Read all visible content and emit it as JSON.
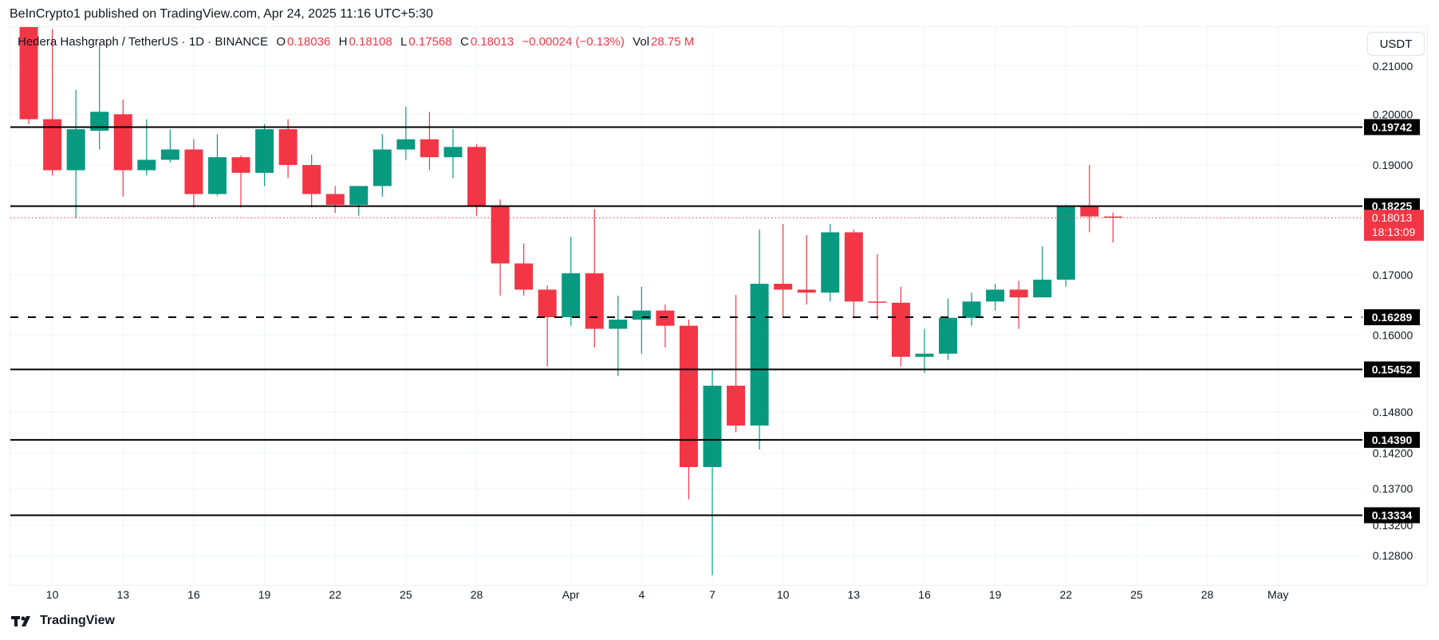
{
  "publisher": "BeInCrypto1 published on TradingView.com, Apr 24, 2025 11:16 UTC+5:30",
  "legend": {
    "symbol": "Hedera Hashgraph / TetherUS · 1D · BINANCE",
    "o_label": "O",
    "o": "0.18036",
    "h_label": "H",
    "h": "0.18108",
    "l_label": "L",
    "l": "0.17568",
    "c_label": "C",
    "c": "0.18013",
    "change": "−0.00024 (−0.13%)",
    "vol_label": "Vol",
    "vol": "28.75 M"
  },
  "currency_button": "USDT",
  "brand": "TradingView",
  "colors": {
    "up": "#089981",
    "down": "#F23645",
    "level": "#000000",
    "last_price": "#F23645"
  },
  "chart_data": {
    "type": "candlestick",
    "scale": "log",
    "grid": true,
    "ylim": [
      0.1235,
      0.2165
    ],
    "y_ticks": [
      "0.21000",
      "0.20000",
      "0.19000",
      "0.17000",
      "0.16000",
      "0.14800",
      "0.14200",
      "0.13700",
      "0.13200",
      "0.12800"
    ],
    "x_ticks": [
      {
        "label": "10",
        "date": "2025-03-10"
      },
      {
        "label": "13",
        "date": "2025-03-13"
      },
      {
        "label": "16",
        "date": "2025-03-16"
      },
      {
        "label": "19",
        "date": "2025-03-19"
      },
      {
        "label": "22",
        "date": "2025-03-22"
      },
      {
        "label": "25",
        "date": "2025-03-25"
      },
      {
        "label": "28",
        "date": "2025-03-28"
      },
      {
        "label": "Apr",
        "date": "2025-04-01"
      },
      {
        "label": "4",
        "date": "2025-04-04"
      },
      {
        "label": "7",
        "date": "2025-04-07"
      },
      {
        "label": "10",
        "date": "2025-04-10"
      },
      {
        "label": "13",
        "date": "2025-04-13"
      },
      {
        "label": "16",
        "date": "2025-04-16"
      },
      {
        "label": "19",
        "date": "2025-04-19"
      },
      {
        "label": "22",
        "date": "2025-04-22"
      },
      {
        "label": "25",
        "date": "2025-04-25"
      },
      {
        "label": "28",
        "date": "2025-04-28"
      },
      {
        "label": "May",
        "date": "2025-05-01"
      }
    ],
    "candles": [
      [
        "2025-03-09",
        0.222,
        0.225,
        0.198,
        0.199
      ],
      [
        "2025-03-10",
        0.199,
        0.218,
        0.188,
        0.189
      ],
      [
        "2025-03-11",
        0.189,
        0.205,
        0.18,
        0.197
      ],
      [
        "2025-03-12",
        0.1967,
        0.215,
        0.193,
        0.2005
      ],
      [
        "2025-03-13",
        0.2,
        0.203,
        0.184,
        0.189
      ],
      [
        "2025-03-14",
        0.189,
        0.199,
        0.188,
        0.191
      ],
      [
        "2025-03-15",
        0.191,
        0.197,
        0.1905,
        0.193
      ],
      [
        "2025-03-16",
        0.193,
        0.195,
        0.182,
        0.1845
      ],
      [
        "2025-03-17",
        0.1845,
        0.196,
        0.1842,
        0.1915
      ],
      [
        "2025-03-18",
        0.1915,
        0.1918,
        0.182,
        0.1885
      ],
      [
        "2025-03-19",
        0.1885,
        0.198,
        0.186,
        0.197
      ],
      [
        "2025-03-20",
        0.197,
        0.199,
        0.1875,
        0.19
      ],
      [
        "2025-03-21",
        0.19,
        0.192,
        0.182,
        0.1845
      ],
      [
        "2025-03-22",
        0.1845,
        0.186,
        0.181,
        0.1825
      ],
      [
        "2025-03-23",
        0.1825,
        0.186,
        0.1805,
        0.186
      ],
      [
        "2025-03-24",
        0.186,
        0.196,
        0.184,
        0.193
      ],
      [
        "2025-03-25",
        0.193,
        0.2015,
        0.191,
        0.195
      ],
      [
        "2025-03-26",
        0.195,
        0.2005,
        0.189,
        0.1915
      ],
      [
        "2025-03-27",
        0.1915,
        0.197,
        0.1875,
        0.1935
      ],
      [
        "2025-03-28",
        0.1935,
        0.194,
        0.1805,
        0.1823
      ],
      [
        "2025-03-29",
        0.1823,
        0.1835,
        0.1665,
        0.172
      ],
      [
        "2025-03-30",
        0.172,
        0.1755,
        0.1665,
        0.1675
      ],
      [
        "2025-03-31",
        0.1675,
        0.1682,
        0.155,
        0.1629
      ],
      [
        "2025-04-01",
        0.1629,
        0.1767,
        0.1615,
        0.1703
      ],
      [
        "2025-04-02",
        0.1703,
        0.1817,
        0.158,
        0.161
      ],
      [
        "2025-04-03",
        0.161,
        0.1665,
        0.1535,
        0.1625
      ],
      [
        "2025-04-04",
        0.1625,
        0.168,
        0.157,
        0.164
      ],
      [
        "2025-04-05",
        0.164,
        0.165,
        0.158,
        0.1615
      ],
      [
        "2025-04-06",
        0.1615,
        0.1625,
        0.1355,
        0.14
      ],
      [
        "2025-04-07",
        0.14,
        0.1545,
        0.1255,
        0.152
      ],
      [
        "2025-04-08",
        0.152,
        0.1666,
        0.145,
        0.146
      ],
      [
        "2025-04-09",
        0.146,
        0.178,
        0.1425,
        0.1685
      ],
      [
        "2025-04-10",
        0.1685,
        0.179,
        0.163,
        0.1675
      ],
      [
        "2025-04-11",
        0.1675,
        0.177,
        0.165,
        0.167
      ],
      [
        "2025-04-12",
        0.167,
        0.179,
        0.1655,
        0.1775
      ],
      [
        "2025-04-13",
        0.1775,
        0.178,
        0.163,
        0.1655
      ],
      [
        "2025-04-14",
        0.1655,
        0.1736,
        0.1625,
        0.1653
      ],
      [
        "2025-04-15",
        0.1653,
        0.168,
        0.155,
        0.1565
      ],
      [
        "2025-04-16",
        0.1565,
        0.161,
        0.154,
        0.157
      ],
      [
        "2025-04-17",
        0.157,
        0.166,
        0.156,
        0.1628
      ],
      [
        "2025-04-18",
        0.1628,
        0.167,
        0.1615,
        0.1655
      ],
      [
        "2025-04-19",
        0.1655,
        0.1685,
        0.164,
        0.1675
      ],
      [
        "2025-04-20",
        0.1675,
        0.169,
        0.161,
        0.1662
      ],
      [
        "2025-04-21",
        0.1662,
        0.175,
        0.1662,
        0.1692
      ],
      [
        "2025-04-22",
        0.1692,
        0.1825,
        0.168,
        0.1823
      ],
      [
        "2025-04-23",
        0.1823,
        0.19,
        0.1775,
        0.18036
      ],
      [
        "2025-04-24",
        0.18036,
        0.18108,
        0.17568,
        0.18013
      ]
    ],
    "levels": [
      {
        "value": 0.19742,
        "label": "0.19742",
        "style": "solid"
      },
      {
        "value": 0.18225,
        "label": "0.18225",
        "style": "solid"
      },
      {
        "value": 0.16289,
        "label": "0.16289",
        "style": "dashed"
      },
      {
        "value": 0.15452,
        "label": "0.15452",
        "style": "solid"
      },
      {
        "value": 0.1439,
        "label": "0.14390",
        "style": "solid"
      },
      {
        "value": 0.13334,
        "label": "0.13334",
        "style": "solid"
      }
    ],
    "last_price": {
      "value": 0.18013,
      "label": "0.18013",
      "countdown": "18:13:09"
    }
  }
}
